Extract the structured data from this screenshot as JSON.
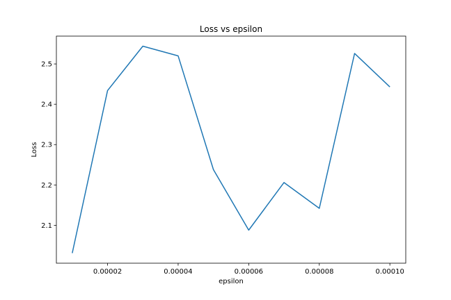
{
  "chart_data": {
    "type": "line",
    "title": "Loss vs epsilon",
    "xlabel": "epsilon",
    "ylabel": "Loss",
    "x": [
      1e-05,
      2e-05,
      3e-05,
      4e-05,
      5e-05,
      6e-05,
      7e-05,
      8e-05,
      9e-05,
      0.0001
    ],
    "series": [
      {
        "values": [
          2.031,
          2.434,
          2.544,
          2.52,
          2.238,
          2.088,
          2.206,
          2.142,
          2.526,
          2.443
        ],
        "color": "#1f77b4"
      }
    ],
    "xlim": [
      5.5e-06,
      0.0001045
    ],
    "ylim": [
      2.006,
      2.569
    ],
    "xticks": [
      2e-05,
      4e-05,
      6e-05,
      8e-05,
      0.0001
    ],
    "xtick_labels": [
      "0.00002",
      "0.00004",
      "0.00006",
      "0.00008",
      "0.00010"
    ],
    "yticks": [
      2.1,
      2.2,
      2.3,
      2.4,
      2.5
    ],
    "ytick_labels": [
      "2.1",
      "2.2",
      "2.3",
      "2.4",
      "2.5"
    ],
    "grid": false,
    "legend": "none"
  }
}
